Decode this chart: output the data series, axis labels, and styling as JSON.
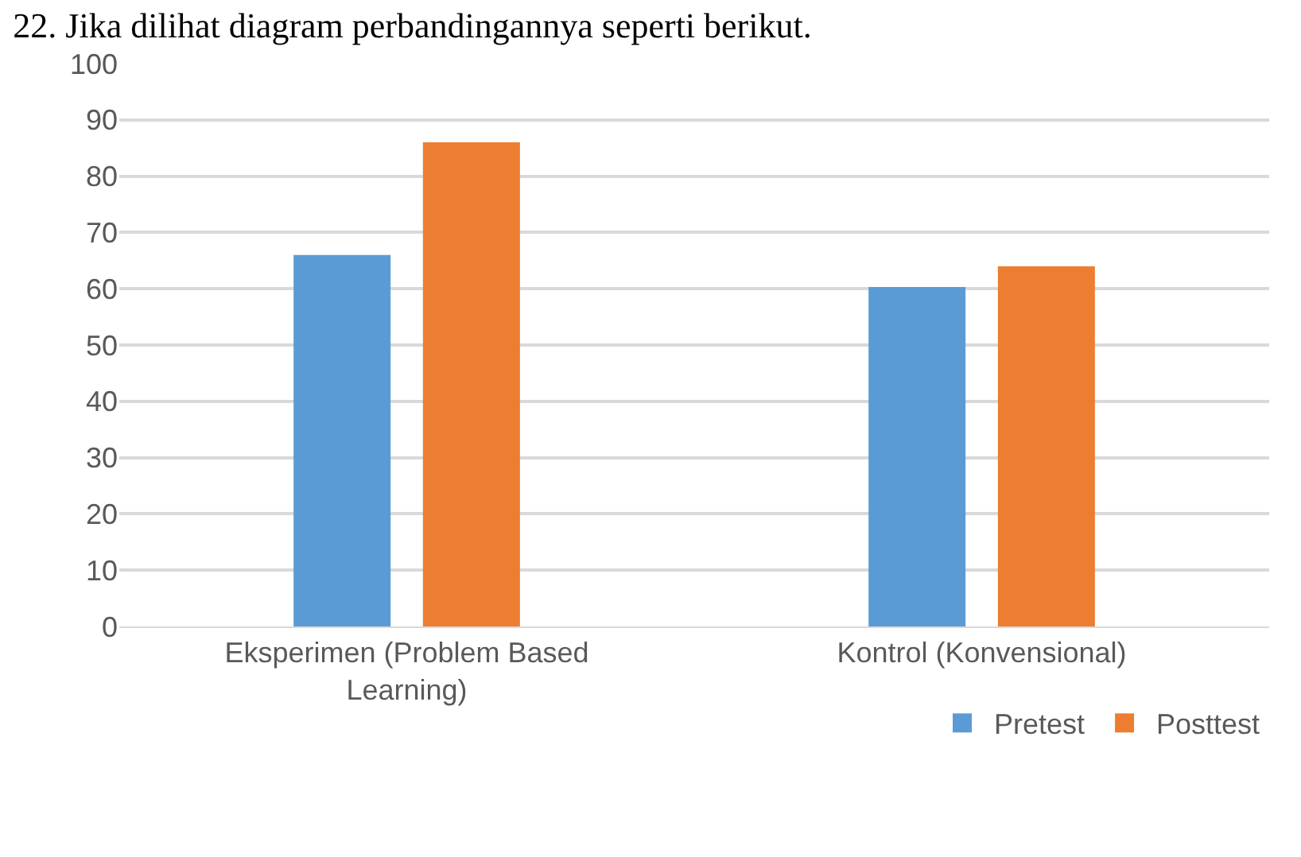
{
  "chart_data": {
    "type": "bar",
    "title": "22. Jika dilihat diagram perbandingannya seperti berikut.",
    "categories": [
      "Eksperimen (Problem Based Learning)",
      "Kontrol (Konvensional)"
    ],
    "series": [
      {
        "name": "Pretest",
        "color": "#5b9bd5",
        "values": [
          66,
          60.3
        ]
      },
      {
        "name": "Posttest",
        "color": "#ed7d31",
        "values": [
          86,
          64
        ]
      }
    ],
    "ylim": [
      0,
      100
    ],
    "yticks": [
      0,
      10,
      20,
      30,
      40,
      50,
      60,
      70,
      80,
      90,
      100
    ],
    "grid": "y",
    "legend": "bottom right"
  }
}
